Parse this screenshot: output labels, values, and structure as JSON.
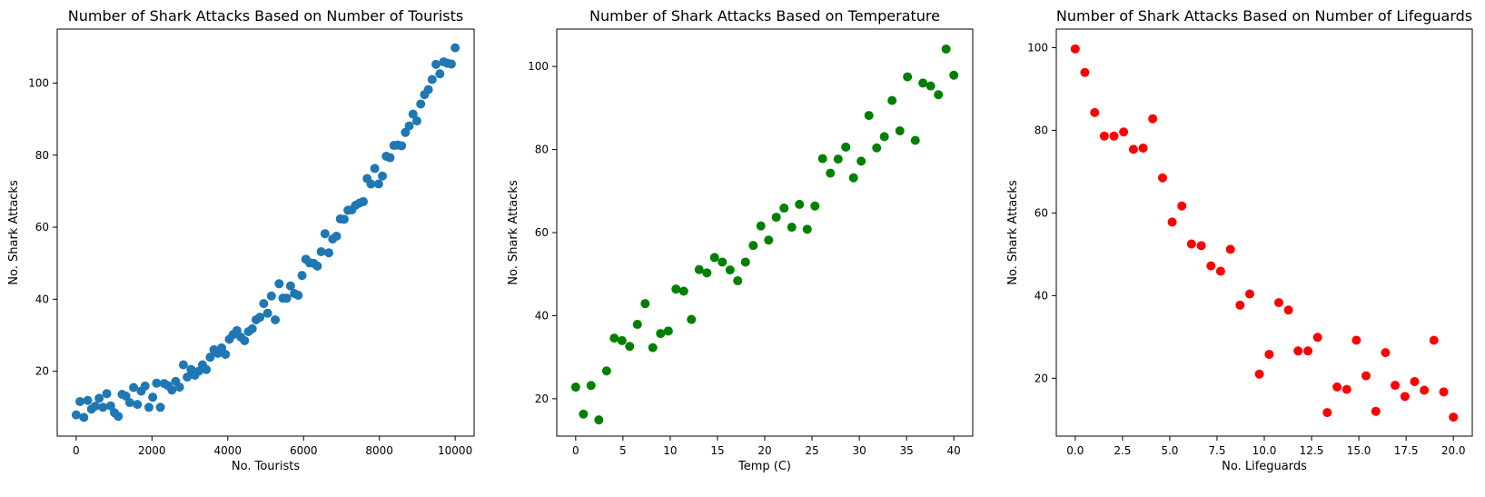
{
  "chart_data": [
    {
      "type": "scatter",
      "title": "Number of Shark Attacks Based on Number of Tourists",
      "xlabel": "No. Tourists",
      "ylabel": "No. Shark Attacks",
      "color": "#1f77b4",
      "xlim": [
        -500,
        10500
      ],
      "ylim": [
        2,
        115
      ],
      "xticks": [
        0,
        2000,
        4000,
        6000,
        8000,
        10000
      ],
      "xtick_labels": [
        "0",
        "2000",
        "4000",
        "6000",
        "8000",
        "10000"
      ],
      "yticks": [
        20,
        40,
        60,
        80,
        100
      ],
      "ytick_labels": [
        "20",
        "40",
        "60",
        "80",
        "100"
      ],
      "grid": false,
      "x": [
        0,
        101,
        202,
        303,
        404,
        505,
        606,
        707,
        808,
        909,
        1010,
        1111,
        1212,
        1313,
        1414,
        1515,
        1616,
        1717,
        1818,
        1919,
        2020,
        2121,
        2222,
        2323,
        2424,
        2525,
        2626,
        2727,
        2828,
        2929,
        3030,
        3131,
        3232,
        3333,
        3434,
        3535,
        3636,
        3737,
        3838,
        3939,
        4040,
        4141,
        4242,
        4343,
        4444,
        4545,
        4646,
        4747,
        4848,
        4949,
        5051,
        5152,
        5253,
        5354,
        5455,
        5556,
        5657,
        5758,
        5859,
        5960,
        6061,
        6162,
        6263,
        6364,
        6465,
        6566,
        6667,
        6768,
        6869,
        6970,
        7071,
        7172,
        7273,
        7374,
        7475,
        7576,
        7677,
        7778,
        7879,
        7980,
        8081,
        8182,
        8283,
        8384,
        8485,
        8586,
        8687,
        8788,
        8889,
        8990,
        9091,
        9192,
        9293,
        9394,
        9495,
        9596,
        9697,
        9798,
        9899,
        10000
      ],
      "y": [
        7.9,
        11.6,
        7.2,
        11.9,
        9.5,
        10.3,
        12.5,
        10.0,
        13.8,
        10.4,
        8.5,
        7.5,
        13.6,
        13.1,
        11.3,
        15.5,
        10.8,
        14.5,
        15.9,
        10.0,
        12.8,
        16.7,
        10.0,
        16.6,
        16.0,
        14.8,
        17.2,
        15.6,
        21.8,
        18.4,
        20.5,
        18.9,
        20.0,
        21.8,
        20.5,
        23.9,
        26.0,
        25.0,
        26.5,
        24.7,
        28.9,
        30.2,
        31.3,
        29.5,
        28.5,
        31.0,
        31.8,
        34.3,
        35.0,
        38.8,
        36.1,
        40.9,
        34.3,
        44.3,
        40.3,
        40.3,
        43.7,
        41.6,
        41.1,
        46.6,
        51.1,
        50.1,
        50.0,
        49.2,
        53.2,
        58.2,
        52.9,
        56.7,
        57.5,
        62.3,
        62.2,
        64.7,
        64.8,
        66.1,
        66.7,
        67.1,
        73.5,
        72.0,
        76.3,
        72.0,
        74.2,
        79.7,
        79.3,
        82.7,
        82.8,
        82.6,
        86.3,
        88.1,
        91.4,
        89.5,
        94.2,
        96.8,
        98.2,
        101.0,
        105.2,
        102.6,
        105.9,
        105.5,
        105.3,
        109.8
      ]
    },
    {
      "type": "scatter",
      "title": "Number of Shark Attacks Based on Temperature",
      "xlabel": "Temp (C)",
      "ylabel": "No. Shark Attacks",
      "color": "#008000",
      "xlim": [
        -2,
        42
      ],
      "ylim": [
        11,
        109
      ],
      "xticks": [
        0,
        5,
        10,
        15,
        20,
        25,
        30,
        35,
        40
      ],
      "xtick_labels": [
        "0",
        "5",
        "10",
        "15",
        "20",
        "25",
        "30",
        "35",
        "40"
      ],
      "yticks": [
        20,
        40,
        60,
        80,
        100
      ],
      "ytick_labels": [
        "20",
        "40",
        "60",
        "80",
        "100"
      ],
      "grid": false,
      "x": [
        0,
        0.82,
        1.63,
        2.45,
        3.27,
        4.08,
        4.9,
        5.71,
        6.53,
        7.35,
        8.16,
        8.98,
        9.8,
        10.61,
        11.43,
        12.24,
        13.06,
        13.88,
        14.69,
        15.51,
        16.33,
        17.14,
        17.96,
        18.78,
        19.59,
        20.41,
        21.22,
        22.04,
        22.86,
        23.67,
        24.49,
        25.31,
        26.12,
        26.94,
        27.76,
        28.57,
        29.39,
        30.2,
        31.02,
        31.84,
        32.65,
        33.47,
        34.29,
        35.1,
        35.92,
        36.73,
        37.55,
        38.37,
        39.18,
        40.0
      ],
      "y": [
        22.8,
        16.3,
        23.2,
        14.9,
        26.7,
        34.6,
        34.0,
        32.6,
        37.9,
        42.9,
        32.3,
        35.7,
        36.3,
        46.4,
        45.9,
        39.1,
        51.1,
        50.3,
        54.0,
        52.9,
        51.0,
        48.4,
        52.9,
        56.9,
        61.6,
        58.2,
        63.7,
        65.9,
        61.3,
        66.8,
        60.8,
        66.4,
        77.8,
        74.3,
        77.7,
        80.6,
        73.2,
        77.2,
        88.2,
        80.4,
        83.1,
        91.8,
        84.5,
        97.5,
        82.2,
        96.0,
        95.3,
        93.2,
        104.2,
        97.9
      ]
    },
    {
      "type": "scatter",
      "title": "Number of Shark Attacks Based on Number of Lifeguards",
      "xlabel": "No. Lifeguards",
      "ylabel": "No. Shark Attacks",
      "color": "#ff0000",
      "xlim": [
        -1,
        21
      ],
      "ylim": [
        6,
        104.5
      ],
      "xticks": [
        0,
        2.5,
        5,
        7.5,
        10,
        12.5,
        15,
        17.5,
        20
      ],
      "xtick_labels": [
        "0.0",
        "2.5",
        "5.0",
        "7.5",
        "10.0",
        "12.5",
        "15.0",
        "17.5",
        "20.0"
      ],
      "yticks": [
        20,
        40,
        60,
        80,
        100
      ],
      "ytick_labels": [
        "20",
        "40",
        "60",
        "80",
        "100"
      ],
      "grid": false,
      "x": [
        0,
        0.51,
        1.03,
        1.54,
        2.05,
        2.56,
        3.08,
        3.59,
        4.1,
        4.62,
        5.13,
        5.64,
        6.15,
        6.67,
        7.18,
        7.69,
        8.21,
        8.72,
        9.23,
        9.74,
        10.26,
        10.77,
        11.28,
        11.79,
        12.31,
        12.82,
        13.33,
        13.85,
        14.36,
        14.87,
        15.38,
        15.9,
        16.41,
        16.92,
        17.44,
        17.95,
        18.46,
        18.97,
        19.49,
        20.0
      ],
      "y": [
        99.7,
        94.0,
        84.3,
        78.6,
        78.6,
        79.6,
        75.4,
        75.7,
        82.8,
        68.5,
        57.8,
        61.7,
        52.5,
        52.1,
        47.2,
        45.9,
        51.2,
        37.7,
        40.4,
        21.0,
        25.8,
        38.3,
        36.5,
        26.6,
        26.6,
        29.9,
        11.7,
        17.9,
        17.3,
        29.2,
        20.6,
        12.0,
        26.2,
        18.3,
        15.6,
        19.2,
        17.1,
        29.2,
        16.7,
        10.6
      ]
    }
  ]
}
